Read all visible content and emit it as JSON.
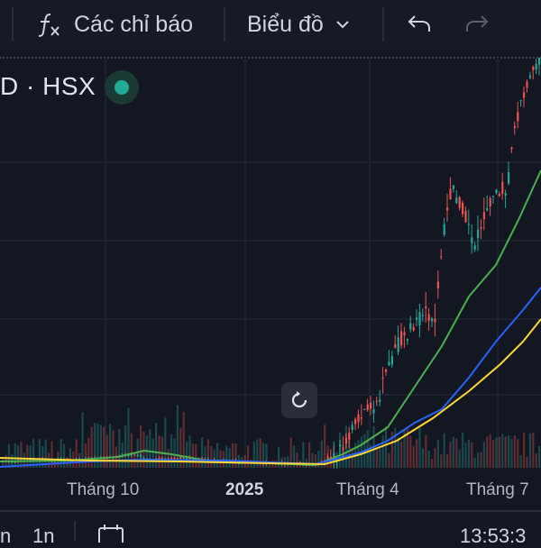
{
  "toolbar": {
    "indicators_icon": "fx-icon",
    "indicators_label": "Các chỉ báo",
    "chart_label": "Biểu đồ",
    "undo_icon": "undo-icon",
    "redo_icon": "redo-icon"
  },
  "header": {
    "symbol_text": "D · HSX",
    "status_color": "#22ab94"
  },
  "bottom": {
    "range_a": "n",
    "range_b": "1n",
    "calendar_icon": "calendar-icon",
    "time_text": "13:53:3"
  },
  "chart_data": {
    "type": "candlestick",
    "x_axis_labels": [
      "Tháng 10",
      "2025",
      "Tháng 4",
      "Tháng 7"
    ],
    "x_axis_bold": [
      "2025"
    ],
    "grid": true,
    "colors": {
      "up": "#26a69a",
      "down": "#ef5350",
      "ma_short": "#4caf50",
      "ma_mid": "#2962ff",
      "ma_long": "#fdd835"
    },
    "series": [
      {
        "name": "",
        "color": "#4caf50"
      },
      {
        "name": "",
        "color": "#2962ff"
      },
      {
        "name": "",
        "color": "#fdd835"
      }
    ]
  }
}
